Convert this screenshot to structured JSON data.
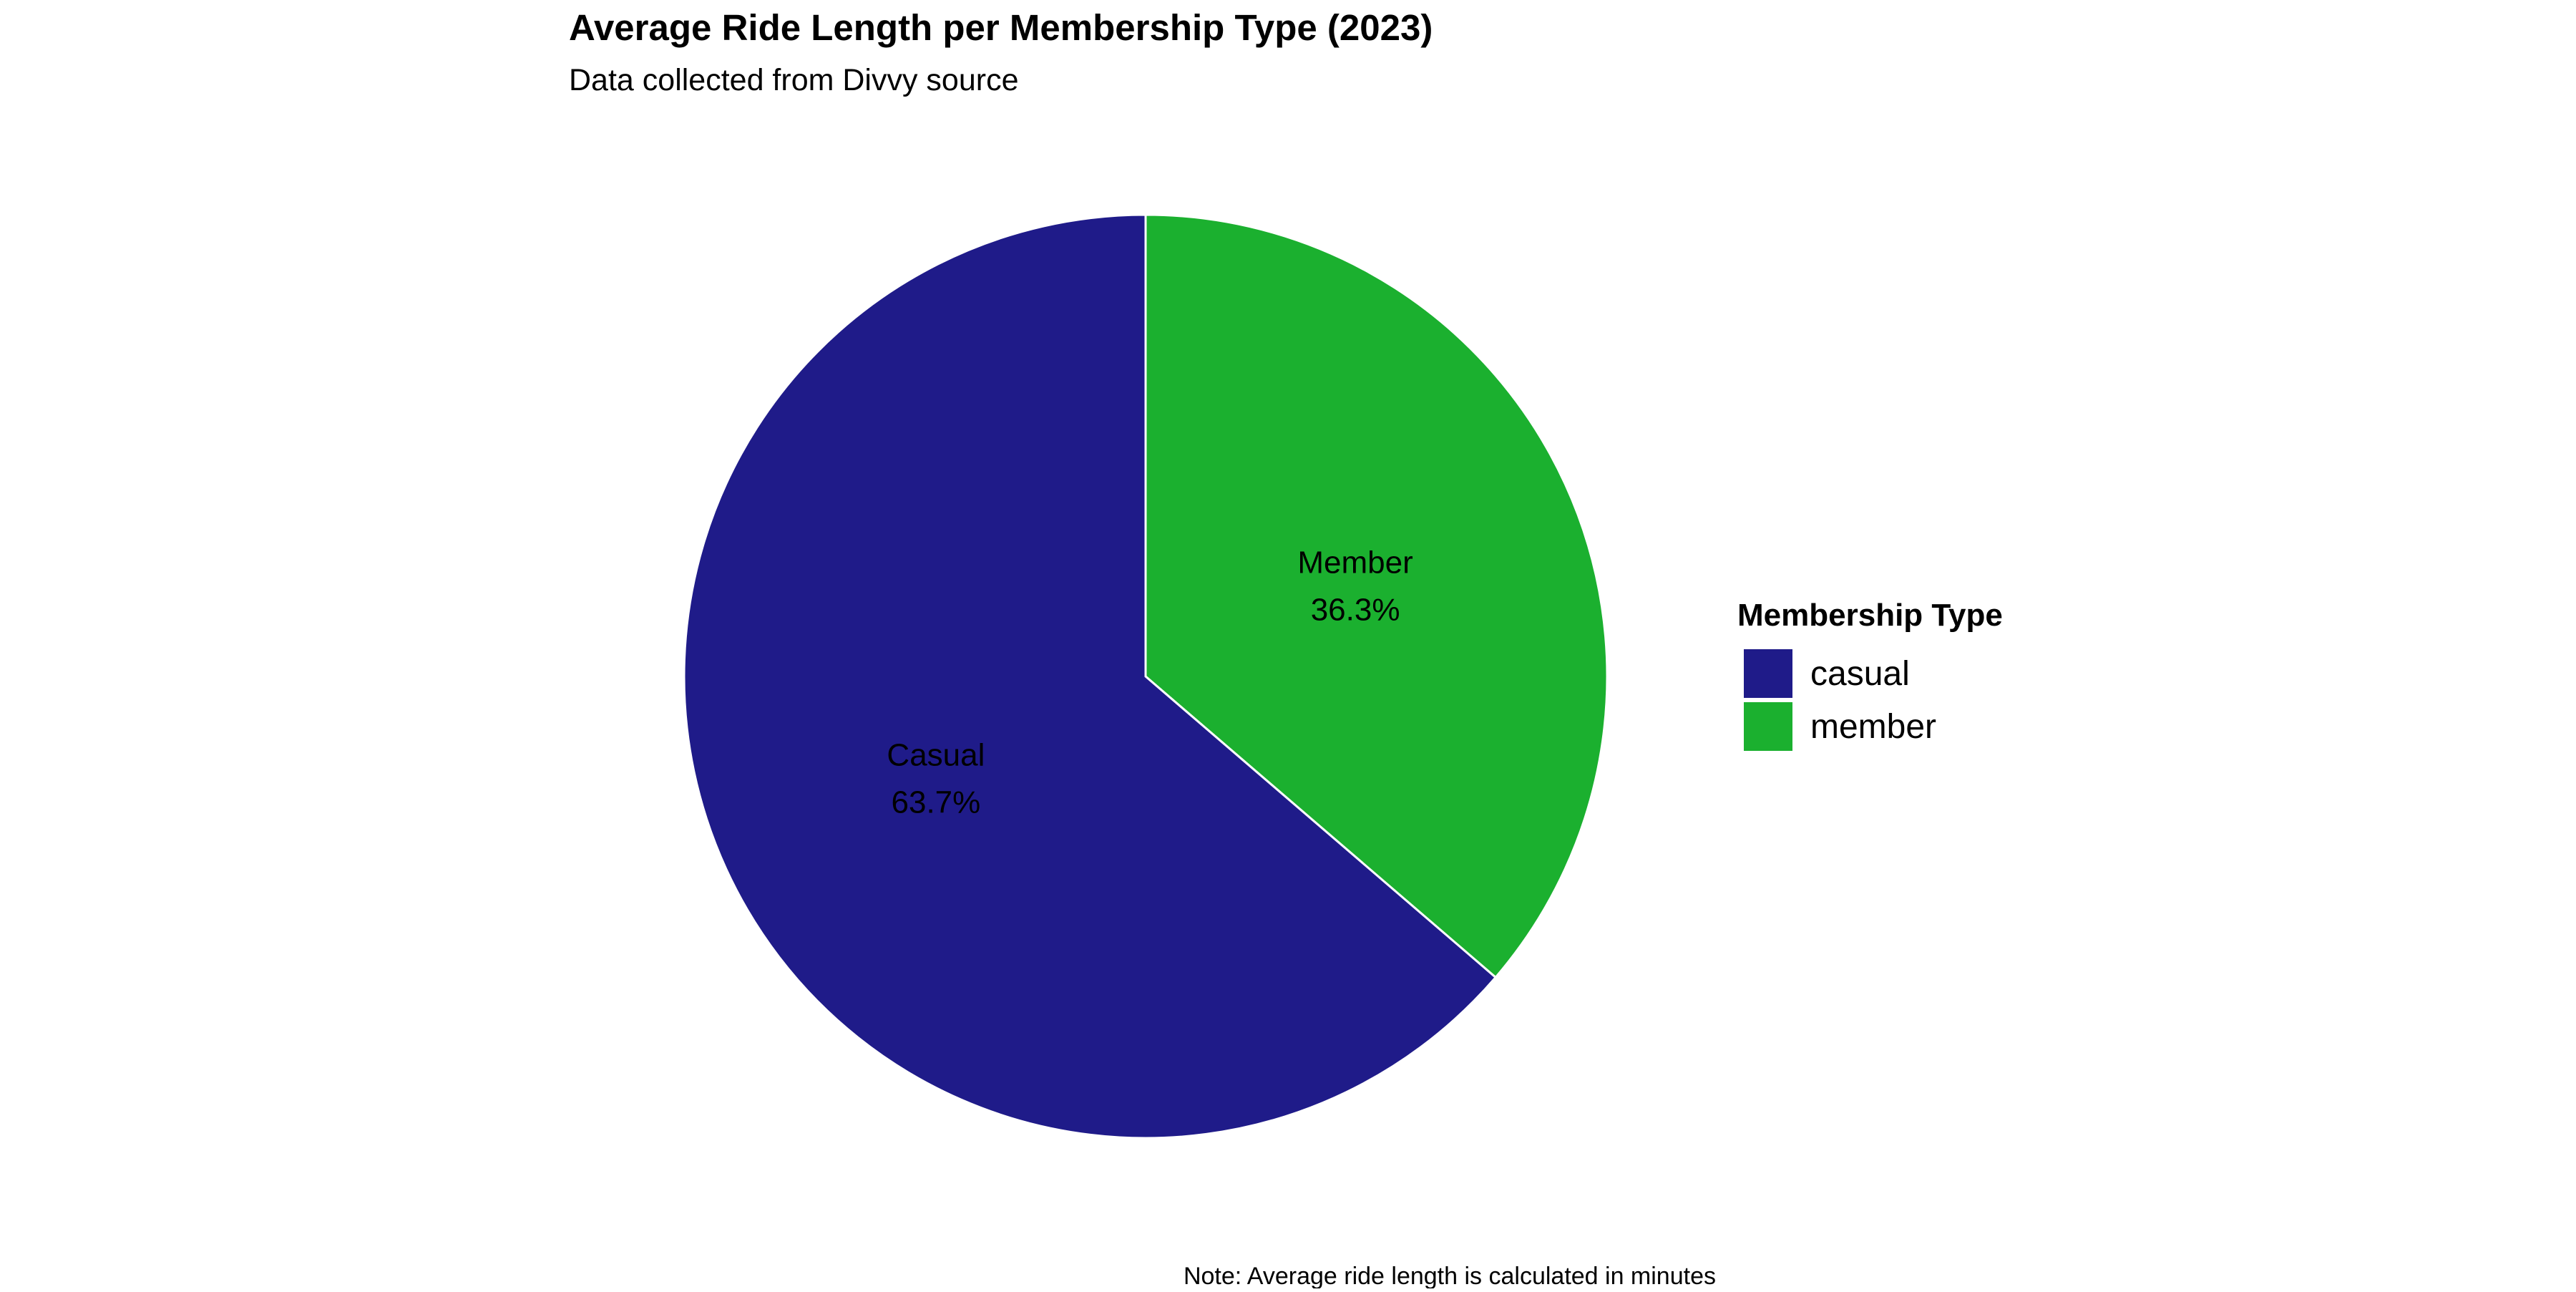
{
  "chart_data": {
    "type": "pie",
    "title": "Average Ride Length per Membership Type (2023)",
    "subtitle": "Data collected from Divvy source",
    "caption": "Note: Average ride length is calculated in minutes",
    "legend": {
      "title": "Membership Type",
      "position": "right"
    },
    "slices": [
      {
        "category": "casual",
        "label": "Casual",
        "value": 63.7,
        "value_label": "63.7%",
        "color": "#1f1b89"
      },
      {
        "category": "member",
        "label": "Member",
        "value": 36.3,
        "value_label": "36.3%",
        "color": "#1bb02f"
      }
    ]
  }
}
